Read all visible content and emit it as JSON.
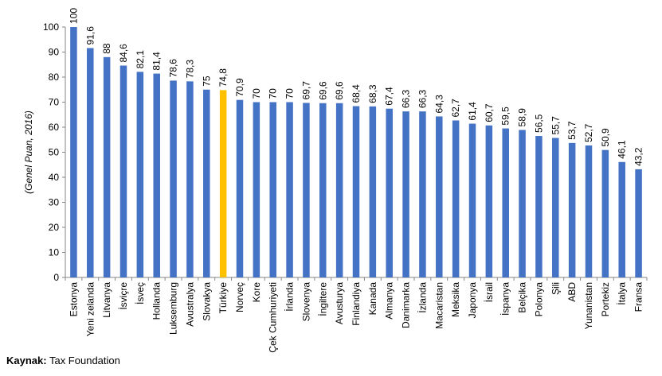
{
  "chart_data": {
    "type": "bar",
    "title": "",
    "xlabel": "",
    "ylabel": "(Genel Puan, 2016)",
    "ylim": [
      0,
      100
    ],
    "yticks": [
      0,
      10,
      20,
      30,
      40,
      50,
      60,
      70,
      80,
      90,
      100
    ],
    "grid": false,
    "categories": [
      "Estonya",
      "Yeni zelanda",
      "Litvanya",
      "İsviçre",
      "İsveç",
      "Hollanda",
      "Luksemburg",
      "Avustralya",
      "Slovakya",
      "Türkiye",
      "Norveç",
      "Kore",
      "Çek Cumhuriyeti",
      "İrlanda",
      "Slovenya",
      "İngiltere",
      "Avusturya",
      "Finlandiya",
      "Kanada",
      "Almanya",
      "Danimarka",
      "İzlanda",
      "Macaristan",
      "Meksika",
      "Japonya",
      "İsrail",
      "İspanya",
      "Belçika",
      "Polonya",
      "Şili",
      "ABD",
      "Yunanistan",
      "Portekiz",
      "İtalya",
      "Fransa"
    ],
    "values": [
      100,
      91.6,
      88,
      84.6,
      82.1,
      81.4,
      78.6,
      78.3,
      75,
      74.8,
      70.9,
      70,
      70,
      70,
      69.7,
      69.6,
      69.6,
      68.4,
      68.3,
      67.4,
      66.3,
      66.3,
      64.3,
      62.7,
      61.4,
      60.7,
      59.5,
      58.9,
      56.5,
      55.7,
      53.7,
      52.7,
      50.9,
      46.1,
      43.2
    ],
    "value_labels": [
      "100",
      "91,6",
      "88",
      "84,6",
      "82,1",
      "81,4",
      "78,6",
      "78,3",
      "75",
      "74,8",
      "70,9",
      "70",
      "70",
      "70",
      "69,7",
      "69,6",
      "69,6",
      "68,4",
      "68,3",
      "67,4",
      "66,3",
      "66,3",
      "64,3",
      "62,7",
      "61,4",
      "60,7",
      "59,5",
      "58,9",
      "56,5",
      "55,7",
      "53,7",
      "52,7",
      "50,9",
      "46,1",
      "43,2"
    ],
    "highlight": "Türkiye",
    "colors": {
      "bar": "#4472C4",
      "highlight": "#FFC000"
    }
  },
  "source": {
    "label": "Kaynak:",
    "text": "Tax Foundation"
  }
}
